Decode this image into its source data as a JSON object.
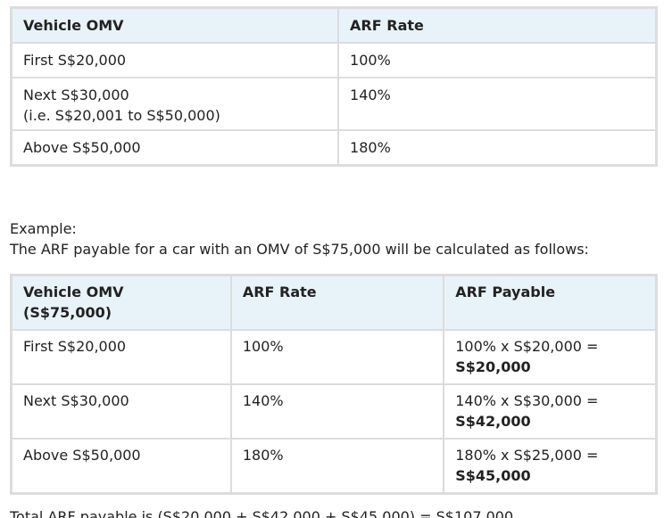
{
  "arf_rate_table": {
    "headers": [
      "Vehicle OMV",
      "ARF Rate"
    ],
    "rows": [
      {
        "omv": "First S$20,000",
        "omv_note": "",
        "rate": "100%"
      },
      {
        "omv": "Next S$30,000",
        "omv_note": "(i.e. S$20,001 to S$50,000)",
        "rate": "140%"
      },
      {
        "omv": "Above S$50,000",
        "omv_note": "",
        "rate": "180%"
      }
    ]
  },
  "example": {
    "label": "Example:",
    "description": "The ARF payable for a car with an OMV of S$75,000 will be calculated as follows:"
  },
  "example_table": {
    "headers": {
      "omv_line1": "Vehicle OMV",
      "omv_line2": "(S$75,000)",
      "rate": "ARF Rate",
      "payable": "ARF Payable"
    },
    "rows": [
      {
        "omv": "First S$20,000",
        "rate": "100%",
        "calc": "100% x S$20,000 =",
        "result": "S$20,000"
      },
      {
        "omv": "Next S$30,000",
        "rate": "140%",
        "calc": "140% x S$30,000 =",
        "result": "S$42,000"
      },
      {
        "omv": "Above S$50,000",
        "rate": "180%",
        "calc": "180% x S$25,000 =",
        "result": "S$45,000"
      }
    ]
  },
  "total_line": "Total ARF payable is (S$20,000 + S$42,000 + S$45,000) = S$107,000"
}
